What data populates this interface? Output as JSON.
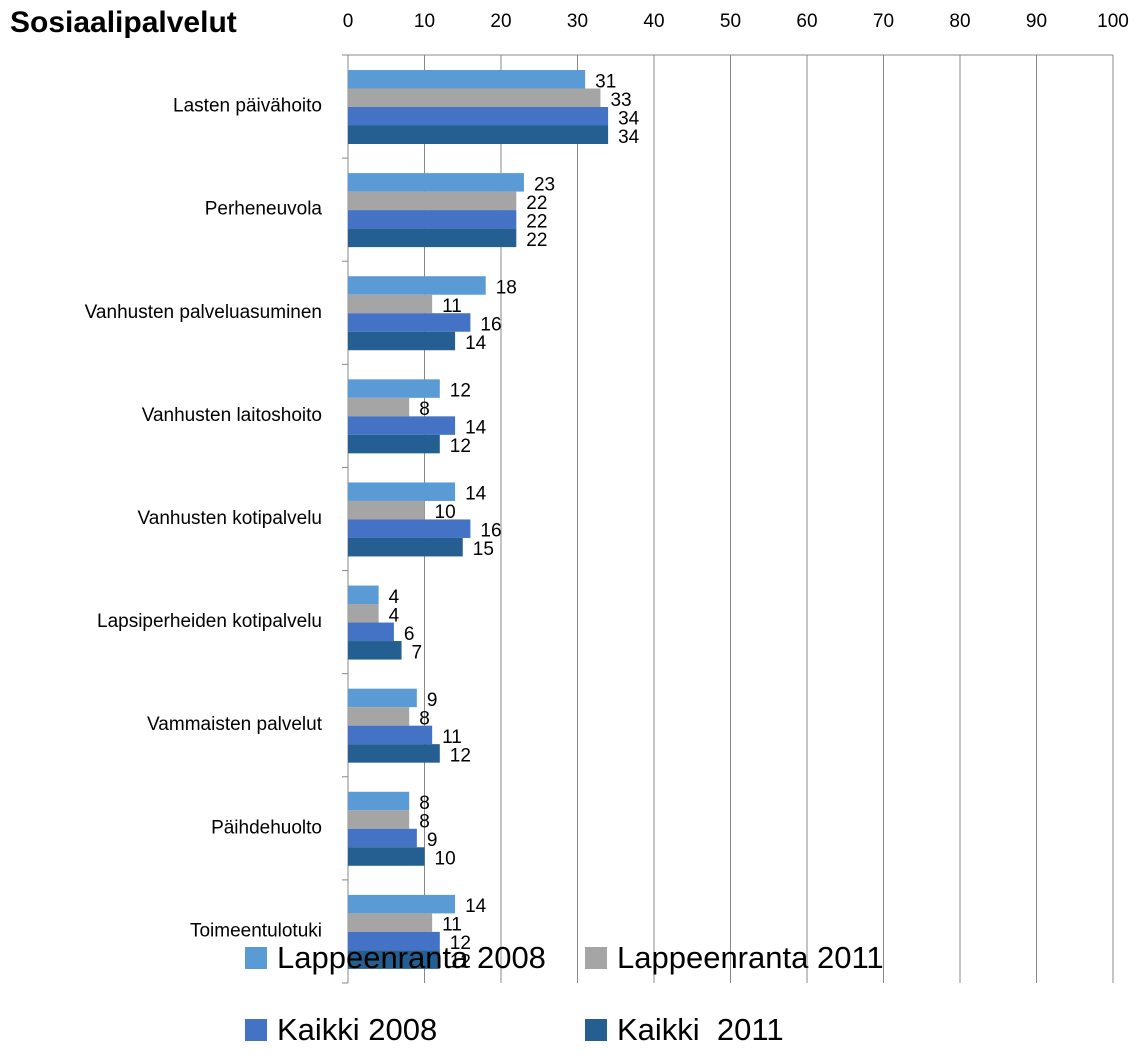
{
  "chart_data": {
    "type": "barh",
    "title": "Sosiaalipalvelut",
    "categories": [
      "Lasten päivähoito",
      "Perheneuvola",
      "Vanhusten palveluasuminen",
      "Vanhusten laitoshoito",
      "Vanhusten kotipalvelu",
      "Lapsiperheiden kotipalvelu",
      "Vammaisten palvelut",
      "Päihdehuolto",
      "Toimeentulotuki"
    ],
    "series": [
      {
        "name": "Lappeenranta 2008",
        "color": "#5b9bd5",
        "values": [
          31,
          23,
          18,
          12,
          14,
          4,
          9,
          8,
          14
        ]
      },
      {
        "name": "Lappeenranta 2011",
        "color": "#a5a5a5",
        "values": [
          33,
          22,
          11,
          8,
          10,
          4,
          8,
          8,
          11
        ]
      },
      {
        "name": "Kaikki 2008",
        "color": "#4472c4",
        "values": [
          34,
          22,
          16,
          14,
          16,
          6,
          11,
          9,
          12
        ]
      },
      {
        "name": "Kaikki  2011",
        "color": "#255e91",
        "values": [
          34,
          22,
          14,
          12,
          15,
          7,
          12,
          10,
          12
        ]
      }
    ],
    "xlim": [
      0,
      100
    ],
    "xticks": [
      0,
      10,
      20,
      30,
      40,
      50,
      60,
      70,
      80,
      90,
      100
    ],
    "grid": true,
    "legend": "bottom"
  }
}
